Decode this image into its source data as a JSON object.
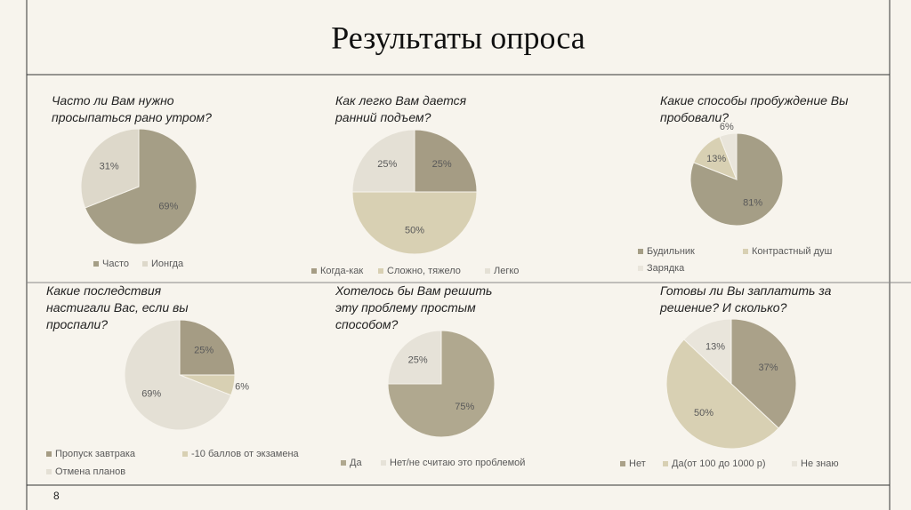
{
  "slide_title": "Результаты опроса",
  "page_number": "8",
  "chart_data": [
    {
      "type": "pie",
      "title": "Часто ли Вам нужно просыпаться рано утром?",
      "categories": [
        "Часто",
        "Ионгда"
      ],
      "values": [
        69,
        31
      ],
      "value_labels": [
        "69%",
        "31%"
      ],
      "colors": [
        "#a59e86",
        "#ddd8ca"
      ]
    },
    {
      "type": "pie",
      "title": "Как легко Вам дается ранний подъем?",
      "categories": [
        "Когда-как",
        "Сложно, тяжело",
        "Легко"
      ],
      "values": [
        25,
        50,
        25
      ],
      "value_labels": [
        "25%",
        "50%",
        "25%"
      ],
      "colors": [
        "#a59c84",
        "#d8d0b3",
        "#e4e0d5"
      ]
    },
    {
      "type": "pie",
      "title": "Какие способы пробуждение Вы пробовали?",
      "categories": [
        "Будильник",
        "Контрастный душ",
        "Зарядка"
      ],
      "values": [
        81,
        13,
        6
      ],
      "value_labels": [
        "81%",
        "13%",
        "6%"
      ],
      "colors": [
        "#a59e86",
        "#d8d0b3",
        "#e9e5db"
      ]
    },
    {
      "type": "pie",
      "title": "Какие последствия настигали Вас, если вы проспали?",
      "categories": [
        "Пропуск завтрака",
        "-10 баллов от экзамена",
        "Отмена планов"
      ],
      "values": [
        25,
        6,
        69
      ],
      "value_labels": [
        "25%",
        "6%",
        "69%"
      ],
      "colors": [
        "#a59c84",
        "#d8d0b3",
        "#e4e0d5"
      ]
    },
    {
      "type": "pie",
      "title": "Хотелось бы Вам решить эту проблему простым способом?",
      "categories": [
        "Да",
        "Нет/не считаю это проблемой"
      ],
      "values": [
        75,
        25
      ],
      "value_labels": [
        "75%",
        "25%"
      ],
      "colors": [
        "#b0a88f",
        "#e6e2d8"
      ]
    },
    {
      "type": "pie",
      "title": "Готовы ли Вы заплатить за решение? И сколько?",
      "categories": [
        "Нет",
        "Да(от 100 до 1000 р)",
        "Не знаю"
      ],
      "values": [
        37,
        50,
        13
      ],
      "value_labels": [
        "37%",
        "50%",
        "13%"
      ],
      "colors": [
        "#aaa189",
        "#d8d0b3",
        "#e9e5db"
      ]
    }
  ]
}
